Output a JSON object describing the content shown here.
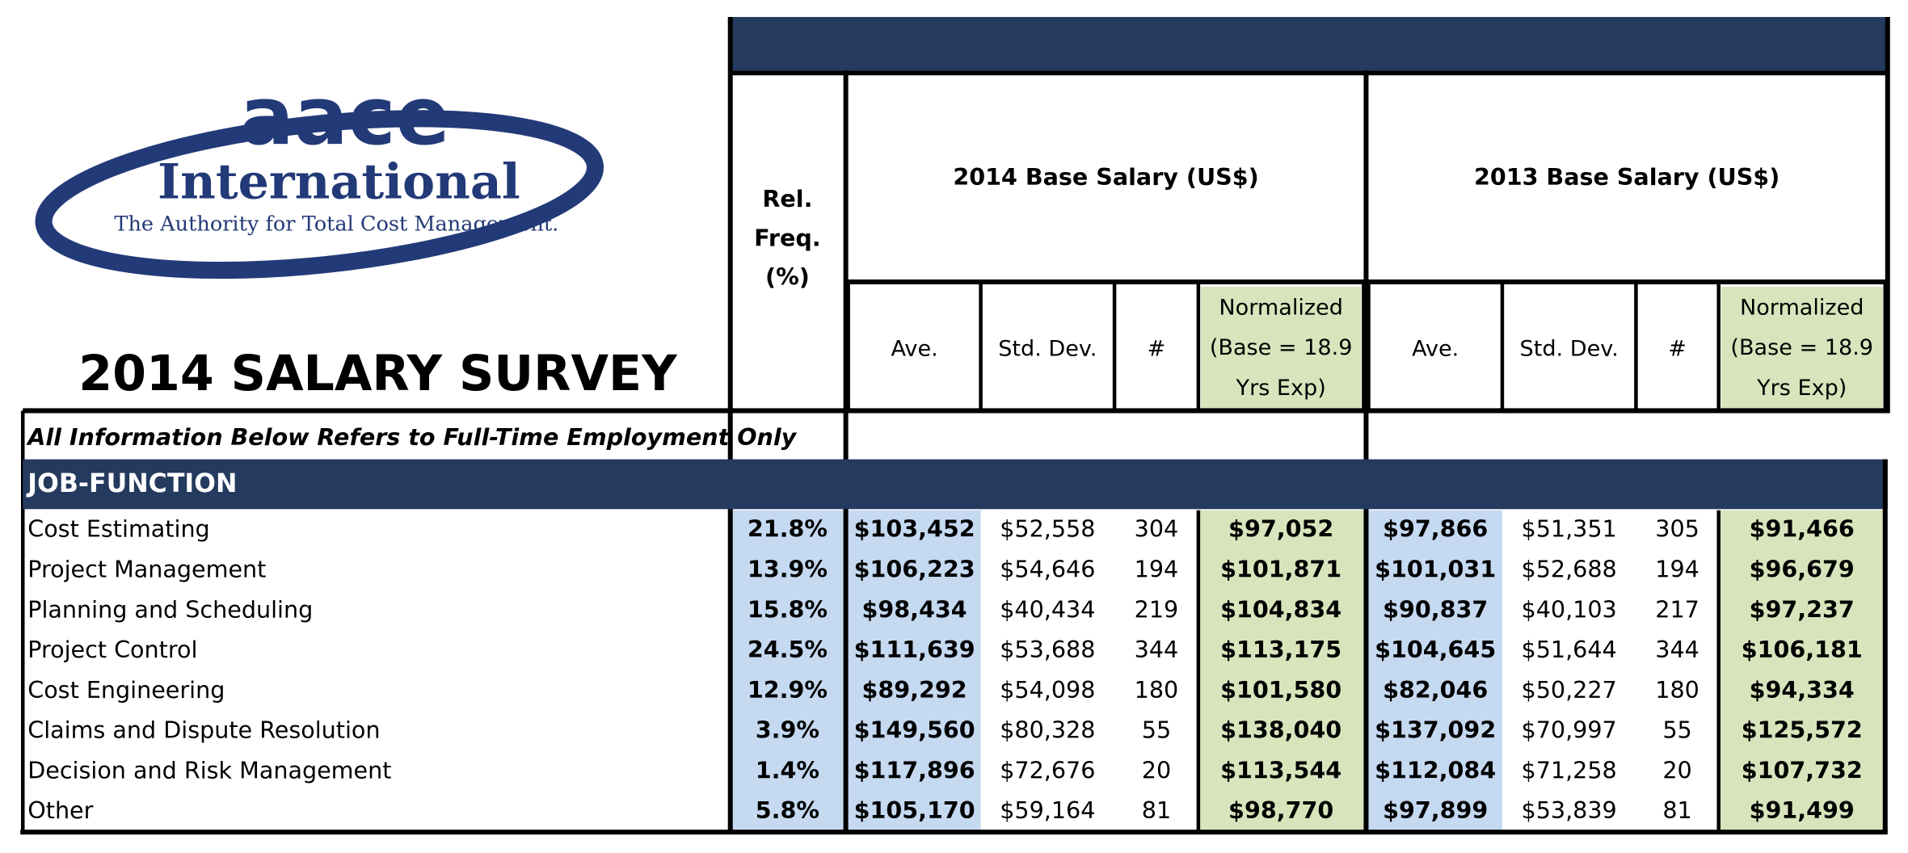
{
  "logo": {
    "brand": "aace",
    "name": "International",
    "tagline": "The Authority for Total Cost Management."
  },
  "title": "2014 SALARY SURVEY",
  "header": {
    "rel_freq": [
      "Rel.",
      "Freq.",
      "(%)"
    ],
    "groups": [
      {
        "title": "2014 Base Salary (US$)",
        "columns": [
          "Ave.",
          "Std. Dev.",
          "#",
          [
            "Normalized",
            "(Base = 18.9",
            "Yrs Exp)"
          ]
        ]
      },
      {
        "title": "2013 Base Salary (US$)",
        "columns": [
          "Ave.",
          "Std. Dev.",
          "#",
          [
            "Normalized",
            "(Base = 18.9",
            "Yrs Exp)"
          ]
        ]
      }
    ]
  },
  "note": "All Information Below Refers to Full-Time Employment Only",
  "section": "JOB-FUNCTION",
  "table": {
    "rows": [
      [
        "Cost Estimating",
        "21.8%",
        "$103,452",
        "$52,558",
        "304",
        "$97,052",
        "$97,866",
        "$51,351",
        "305",
        "$91,466"
      ],
      [
        "Project Management",
        "13.9%",
        "$106,223",
        "$54,646",
        "194",
        "$101,871",
        "$101,031",
        "$52,688",
        "194",
        "$96,679"
      ],
      [
        "Planning and Scheduling",
        "15.8%",
        "$98,434",
        "$40,434",
        "219",
        "$104,834",
        "$90,837",
        "$40,103",
        "217",
        "$97,237"
      ],
      [
        "Project Control",
        "24.5%",
        "$111,639",
        "$53,688",
        "344",
        "$113,175",
        "$104,645",
        "$51,644",
        "344",
        "$106,181"
      ],
      [
        "Cost Engineering",
        "12.9%",
        "$89,292",
        "$54,098",
        "180",
        "$101,580",
        "$82,046",
        "$50,227",
        "180",
        "$94,334"
      ],
      [
        "Claims and Dispute Resolution",
        "3.9%",
        "$149,560",
        "$80,328",
        "55",
        "$138,040",
        "$137,092",
        "$70,997",
        "55",
        "$125,572"
      ],
      [
        "Decision and Risk Management",
        "1.4%",
        "$117,896",
        "$72,676",
        "20",
        "$113,544",
        "$112,084",
        "$71,258",
        "20",
        "$107,732"
      ],
      [
        "Other",
        "5.8%",
        "$105,170",
        "$59,164",
        "81",
        "$98,770",
        "$97,899",
        "$53,839",
        "81",
        "$91,499"
      ]
    ]
  }
}
